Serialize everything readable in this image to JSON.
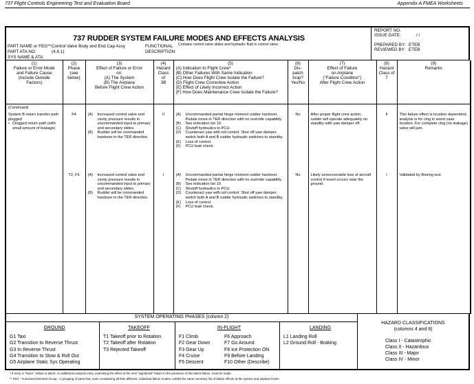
{
  "page_header": {
    "left": "737 Flight Controls Engineering Test and Evaluation Board",
    "right": "Appendix A   FMEA Worksheets"
  },
  "form": {
    "title": "737 RUDDER SYSTEM FAILURE MODES AND EFFECTS ANALYSIS",
    "part_name_label": "PART NAME or FEG**:",
    "part_name": "Control Valve Body and End Cap Assy",
    "part_ata_label": "PART ATA NO:",
    "part_ata": "(4.4.1)",
    "sys_name_label": "SYS NAME & ATA:",
    "functional_label_1": "FUNCTIONAL",
    "functional_label_2": "DESCRIPTION:",
    "functional_description": "Contains control valve slides and hydraulic fluid in control valve.",
    "report_no_label": "REPORT NO.",
    "issue_date_label": "ISSUE DATE:",
    "issue_date": "/   /",
    "prepared_by_label": "PREPARED BY:",
    "prepared_by": "ETEB",
    "reviewed_by_label": "REVIEWED BY:",
    "reviewed_by": "ETEB"
  },
  "columns": [
    {
      "num": "(1)",
      "lines": [
        "Failure or Error Mode",
        "and Failure Cause",
        "(Include Outside",
        "Factors)"
      ]
    },
    {
      "num": "(2)",
      "lines": [
        "Phase",
        "(see",
        "below)"
      ]
    },
    {
      "num": "(3)",
      "lines": [
        "Effect of Failure or Error",
        "on:",
        "(A)  The System",
        "(B)  The Airplane",
        "Before Flight Crew Action"
      ]
    },
    {
      "num": "(4)",
      "lines": [
        "Hazard",
        "Class of",
        "3B"
      ]
    },
    {
      "num": "(5)",
      "lines": [
        "(A)  Indication to Flight Crew*",
        "(B)  Other Failures With Same Indication",
        "(C)  How Does Flight Crew Isolate the Failure?",
        "(D)  Flight Crew Corrective Action",
        "(E)  Effect of Likely Incorrect Action",
        "(F)  How Does Maintenance Crew Isolate the Failure?"
      ]
    },
    {
      "num": "(6)",
      "lines": [
        "Dis-",
        "patch",
        "Inop?",
        "Yes/No"
      ]
    },
    {
      "num": "(7)",
      "lines": [
        "Effect of Failure",
        "on Airplane",
        "(\"Failure Condition\")",
        "After Flight Crew Action"
      ]
    },
    {
      "num": "(8)",
      "lines": [
        "Hazard",
        "Class of",
        "7"
      ]
    },
    {
      "num": "(9)",
      "lines": [
        "Remarks"
      ]
    }
  ],
  "continued": "(Continued)",
  "rows": [
    {
      "mode": "System B return transfer path plugged",
      "bullet": "Clogged return path (with small amount of leakage)",
      "phase": "F4",
      "effect": [
        {
          "k": "(A)",
          "t": "Increased control valve end cavity pressure results in uncommanded input to primary and secondary slides."
        },
        {
          "k": "(B)",
          "t": "Rudder will be commanded hardover in the TER direction."
        }
      ],
      "hazard3b": "II",
      "crew": [
        {
          "k": "(A)",
          "t": "Uncommanded partial hinge moment rudder hardover. Pedals move in TER direction with no override capability."
        },
        {
          "k": "(B)",
          "t": "See indication list 10."
        },
        {
          "k": "(C)",
          "t": "Shutoff hydraulics to PCU."
        },
        {
          "k": "(D)",
          "t": "Counteract yaw with roll control.  Shut off yaw damper, switch both A and B rudder hydraulic switches to standby."
        },
        {
          "k": "(E)",
          "t": "Loss of control."
        },
        {
          "k": "(F)",
          "t": "PCU leak check."
        }
      ],
      "dispatch": "No",
      "airplane_effect": "After proper flight crew action, rudder will operate adequately on standby with yaw damper off.",
      "hazard7": "II",
      "remarks": "This failure effect is location dependent, analysis is for clog in worst case location. For complete clog (no leakage) valve will jam."
    },
    {
      "mode": "",
      "bullet": "",
      "phase": "T2, F6",
      "effect": [
        {
          "k": "(A)",
          "t": "Increased control valve end cavity pressure results in uncommanded input to primary and secondary slides."
        },
        {
          "k": "(B)",
          "t": "Rudder will be commanded hardover in the TER direction."
        }
      ],
      "hazard3b": "I",
      "crew": [
        {
          "k": "(A)",
          "t": "Uncommanded partial hinge moment rudder hardover. Pedals move in TER direction with no override capability."
        },
        {
          "k": "(B)",
          "t": "See indication list 10."
        },
        {
          "k": "(C)",
          "t": "Shutoff hydraulics to PCU."
        },
        {
          "k": "(D)",
          "t": "Counteract yaw with roll control.  Shut off yaw damper, switch both A and B rudder hydraulic switches to standby."
        },
        {
          "k": "(E)",
          "t": "Loss of control."
        },
        {
          "k": "(F)",
          "t": "PCU leak check."
        }
      ],
      "dispatch": "No",
      "airplane_effect": "Likely unrecoverable loss of aircraft control if event occurs near the ground.",
      "hazard7": "I",
      "remarks": "Validated by Boeing test."
    }
  ],
  "phases": {
    "title": "SYSTEM OPERATING PHASES (column 2)",
    "ground": {
      "title": "GROUND",
      "items": [
        "G1  Taxi",
        "G2  Transition to Reverse Thrust",
        "G3  In Reverse Thrust",
        "G4  Transition to Stow & Roll Out",
        "G5  Airplane Static Sys Operating"
      ]
    },
    "takeoff": {
      "title": "TAKEOFF",
      "items": [
        "T1  Takeoff prior to Rotation",
        "T2  Takeoff after Rotation",
        "T3    Rejected Takeoff"
      ]
    },
    "inflight": {
      "title": "IN-FLIGHT",
      "left": [
        "F1  Climb",
        "F2  Gear Down",
        "F3  Gear Up",
        "F4  Cruise",
        "F5  Descent"
      ],
      "right": [
        "F6  Approach",
        "F7  Go Around",
        "F8  Ice Protection ON",
        "F9  Before Landing",
        "F10 Other (Describe)"
      ]
    },
    "landing": {
      "title": "LANDING",
      "items": [
        "L1  Landing Roll",
        "L2  Ground Roll - Braking"
      ]
    }
  },
  "hazard": {
    "title": "HAZARD CLASSIFICATIONS",
    "subtitle": "(columns 4 and 8)",
    "classes": [
      "Class I   - Catastrophic",
      "Class II  - Hazardous",
      "Class III - Major",
      "Class IV - Minor"
    ]
  },
  "footnotes": [
    "*   If entry is \"None\", failure is latent.  An additional analysis entry, examining the effect of the next \"significant\" failure in the presence of this latent failure, must be made.",
    "**  FEG - Functional Element Group - A grouping of parts that, even considering all their different, individual failure modes, exhibit the same summary list of failure effects at the system and airplane levels."
  ]
}
